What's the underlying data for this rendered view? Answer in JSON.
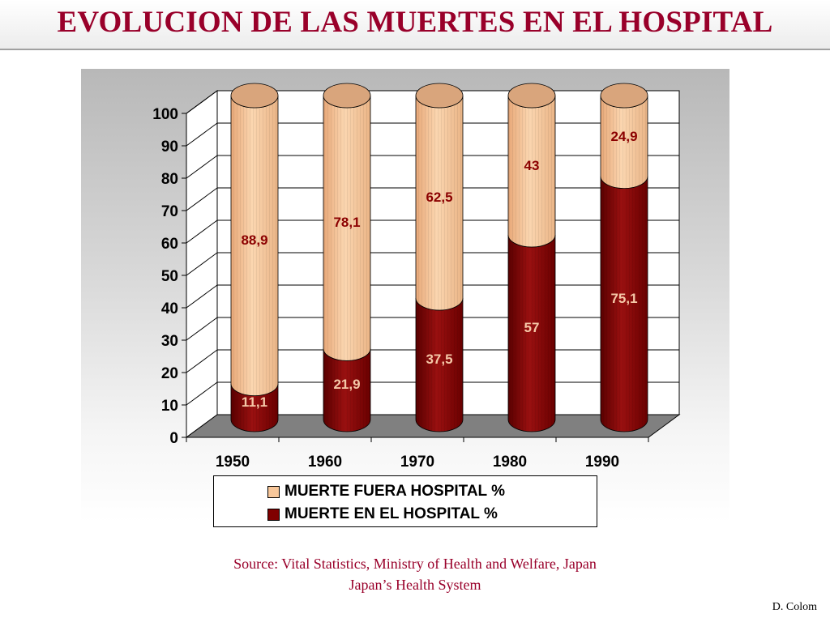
{
  "slide": {
    "title": "EVOLUCION DE LAS MUERTES EN EL HOSPITAL",
    "source_line1": "Source: Vital Statistics, Ministry of Health and Welfare, Japan",
    "source_line2": "Japan’s Health System",
    "author": "D. Colom"
  },
  "chart_data": {
    "type": "bar",
    "stacked": true,
    "shape": "cylinder-3d",
    "categories": [
      "1950",
      "1960",
      "1970",
      "1980",
      "1990"
    ],
    "series": [
      {
        "name": "MUERTE EN EL HOSPITAL %",
        "values": [
          11.1,
          21.9,
          37.5,
          57,
          75.1
        ],
        "labels": [
          "11,1",
          "21,9",
          "37,5",
          "57",
          "75,1"
        ],
        "color": "#800000",
        "label_color": "#f5c8a8"
      },
      {
        "name": "MUERTE FUERA HOSPITAL %",
        "values": [
          88.9,
          78.1,
          62.5,
          43,
          24.9
        ],
        "labels": [
          "88,9",
          "78,1",
          "62,5",
          "43",
          "24,9"
        ],
        "color": "#f8c79a",
        "label_color": "#8b0000"
      }
    ],
    "legend_order": [
      "MUERTE FUERA HOSPITAL %",
      "MUERTE EN EL HOSPITAL %"
    ],
    "ylim": [
      0,
      100
    ],
    "yticks": [
      "0",
      "10",
      "20",
      "30",
      "40",
      "50",
      "60",
      "70",
      "80",
      "90",
      "100"
    ],
    "grid": true,
    "legend_position": "bottom"
  }
}
